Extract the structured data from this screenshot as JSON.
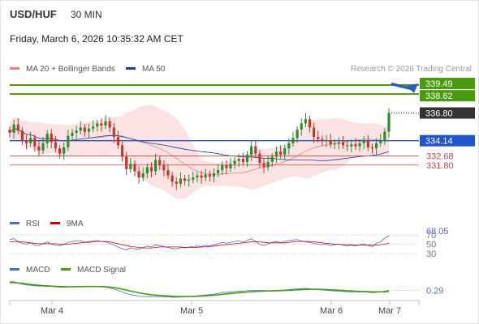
{
  "header": {
    "symbol": "USD/HUF",
    "timeframe": "30 MIN",
    "datetime": "Friday, March 6, 2026 10:35:32 AM CET",
    "credit": "Research © 2026 Trading Central"
  },
  "legend": {
    "bollinger": "MA 20 + Bollinger Bands",
    "ma50": "MA 50",
    "rsi": "RSI",
    "rsi_ma": "9MA",
    "macd": "MACD",
    "macd_signal": "MACD Signal"
  },
  "colors": {
    "bullish": "#2e8b2e",
    "bearish": "#c0392b",
    "ma20_band": "#f08080",
    "ma50": "#1f3f8f",
    "resistance": "#4a9a10",
    "support": "#2255cc",
    "support_red": "#d04040",
    "arrow": "#2a5fb0",
    "rsi": "#4a6fd0",
    "macd_signal": "#4a9a10"
  },
  "chart_data": [
    {
      "type": "candlestick",
      "title": "USD/HUF 30 MIN",
      "x_ticks": [
        "Mar 4",
        "Mar 5",
        "Mar 6",
        "Mar 7"
      ],
      "ylim": [
        328.2,
        340.5
      ],
      "ohlc_close_series": [
        334.9,
        335.7,
        335.1,
        334.2,
        333.9,
        334.4,
        333.6,
        333.2,
        333.9,
        334.8,
        334.0,
        333.4,
        332.9,
        333.5,
        334.6,
        334.9,
        335.1,
        335.4,
        335.0,
        335.3,
        335.5,
        335.8,
        335.6,
        336.0,
        335.4,
        334.5,
        333.7,
        332.6,
        331.4,
        331.9,
        331.2,
        330.6,
        331.0,
        331.6,
        331.2,
        332.3,
        331.8,
        331.3,
        330.8,
        330.2,
        330.0,
        330.5,
        330.3,
        330.4,
        330.6,
        330.8,
        330.6,
        330.9,
        330.7,
        331.0,
        331.3,
        331.8,
        331.5,
        331.9,
        332.2,
        332.4,
        332.1,
        332.8,
        333.6,
        332.9,
        332.0,
        331.6,
        332.1,
        332.6,
        333.1,
        332.8,
        333.4,
        333.9,
        334.4,
        335.2,
        335.8,
        336.2,
        335.4,
        334.5,
        334.3,
        334.1,
        334.2,
        333.8,
        333.9,
        334.0,
        333.7,
        333.6,
        333.8,
        333.6,
        333.9,
        334.1,
        333.5,
        333.4,
        333.9,
        334.2,
        335.0,
        336.8
      ],
      "lines": {
        "resistance_1": 339.49,
        "resistance_2": 338.62,
        "last_price": 336.8,
        "pivot": 334.14,
        "support_1": 332.68,
        "support_2": 331.8
      },
      "price_labels": [
        "339.49",
        "338.62",
        "336.80",
        "334.14",
        "332.68",
        "331.80"
      ],
      "arrow_target": 339.49,
      "series": [
        {
          "name": "MA 20 + Bollinger Bands"
        },
        {
          "name": "MA 50"
        }
      ]
    },
    {
      "type": "line",
      "title": "RSI",
      "ylim": [
        30,
        70
      ],
      "ticks": [
        "70",
        "50",
        "30"
      ],
      "last_value_label": "68.05",
      "series": [
        {
          "name": "RSI",
          "values": [
            60,
            62,
            55,
            52,
            50,
            53,
            48,
            47,
            51,
            55,
            50,
            48,
            46,
            50,
            54,
            56,
            57,
            58,
            54,
            56,
            57,
            58,
            56,
            55,
            52,
            48,
            44,
            40,
            38,
            42,
            40,
            39,
            43,
            46,
            44,
            49,
            47,
            45,
            43,
            41,
            40,
            43,
            42,
            44,
            45,
            46,
            45,
            47,
            46,
            49,
            51,
            54,
            52,
            54,
            56,
            57,
            55,
            58,
            62,
            56,
            50,
            47,
            51,
            54,
            56,
            53,
            56,
            58,
            59,
            60,
            57,
            55,
            54,
            52,
            50,
            49,
            50,
            47,
            49,
            50,
            48,
            46,
            48,
            46,
            49,
            51,
            47,
            45,
            52,
            55,
            63,
            68.05
          ]
        },
        {
          "name": "9MA",
          "values": [
            55,
            56,
            56,
            55,
            54,
            53,
            52,
            51,
            51,
            51,
            51,
            51,
            50,
            50,
            50,
            51,
            52,
            53,
            54,
            54,
            55,
            56,
            56,
            56,
            55,
            53,
            51,
            49,
            47,
            45,
            44,
            43,
            42,
            42,
            42,
            43,
            44,
            44,
            44,
            44,
            44,
            44,
            43,
            43,
            43,
            43,
            44,
            44,
            45,
            46,
            47,
            48,
            49,
            50,
            51,
            52,
            53,
            54,
            55,
            55,
            55,
            54,
            53,
            53,
            53,
            53,
            53,
            54,
            55,
            56,
            56,
            56,
            56,
            55,
            54,
            53,
            52,
            51,
            50,
            50,
            49,
            49,
            49,
            48,
            48,
            48,
            48,
            48,
            48,
            49,
            50,
            52
          ]
        }
      ]
    },
    {
      "type": "line",
      "title": "MACD",
      "last_value_label": "0.29",
      "series": [
        {
          "name": "MACD",
          "values": [
            1.5,
            1.4,
            1.25,
            1.1,
            1.0,
            0.95,
            0.9,
            0.85,
            0.85,
            0.8,
            0.8,
            0.75,
            0.7,
            0.7,
            0.72,
            0.75,
            0.8,
            0.82,
            0.8,
            0.8,
            0.8,
            0.78,
            0.75,
            0.7,
            0.6,
            0.45,
            0.3,
            0.1,
            -0.1,
            -0.25,
            -0.35,
            -0.45,
            -0.5,
            -0.5,
            -0.52,
            -0.5,
            -0.5,
            -0.52,
            -0.55,
            -0.6,
            -0.6,
            -0.58,
            -0.55,
            -0.5,
            -0.45,
            -0.4,
            -0.35,
            -0.3,
            -0.25,
            -0.2,
            -0.1,
            0.0,
            0.05,
            0.1,
            0.15,
            0.2,
            0.2,
            0.25,
            0.3,
            0.3,
            0.3,
            0.28,
            0.25,
            0.28,
            0.3,
            0.32,
            0.35,
            0.4,
            0.45,
            0.5,
            0.52,
            0.55,
            0.5,
            0.45,
            0.4,
            0.35,
            0.3,
            0.25,
            0.2,
            0.18,
            0.15,
            0.12,
            0.1,
            0.08,
            0.08,
            0.1,
            0.05,
            0.0,
            0.05,
            0.1,
            0.2,
            0.29
          ]
        },
        {
          "name": "MACD Signal",
          "values": [
            1.3,
            1.3,
            1.25,
            1.2,
            1.12,
            1.05,
            1.0,
            0.95,
            0.9,
            0.88,
            0.85,
            0.82,
            0.8,
            0.78,
            0.76,
            0.75,
            0.76,
            0.78,
            0.78,
            0.79,
            0.79,
            0.79,
            0.78,
            0.76,
            0.72,
            0.65,
            0.56,
            0.45,
            0.32,
            0.2,
            0.08,
            -0.02,
            -0.12,
            -0.2,
            -0.27,
            -0.32,
            -0.36,
            -0.4,
            -0.43,
            -0.46,
            -0.49,
            -0.5,
            -0.51,
            -0.5,
            -0.49,
            -0.47,
            -0.44,
            -0.41,
            -0.37,
            -0.33,
            -0.28,
            -0.22,
            -0.16,
            -0.1,
            -0.05,
            0.0,
            0.04,
            0.08,
            0.12,
            0.16,
            0.19,
            0.21,
            0.22,
            0.23,
            0.25,
            0.26,
            0.28,
            0.3,
            0.33,
            0.36,
            0.39,
            0.42,
            0.44,
            0.44,
            0.43,
            0.42,
            0.4,
            0.37,
            0.34,
            0.31,
            0.28,
            0.25,
            0.22,
            0.19,
            0.17,
            0.15,
            0.13,
            0.11,
            0.1,
            0.1,
            0.12,
            0.15
          ]
        }
      ]
    }
  ]
}
